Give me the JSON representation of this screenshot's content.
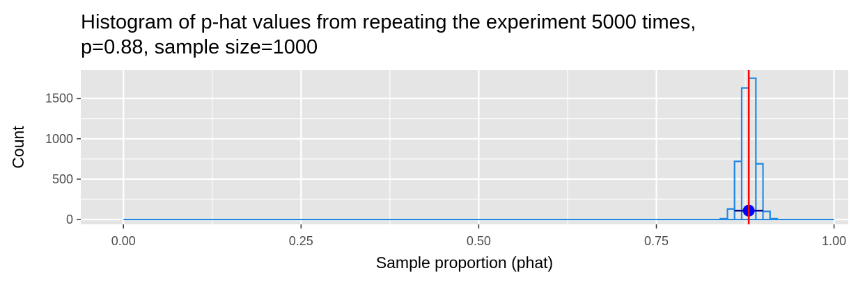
{
  "chart_data": {
    "type": "bar",
    "title_lines": [
      "Histogram of p-hat values from repeating the experiment 5000 times,",
      "p=0.88, sample size=1000"
    ],
    "xlabel": "Sample proportion (phat)",
    "ylabel": "Count",
    "xlim": [
      -0.06,
      1.02
    ],
    "ylim": [
      -60,
      1850
    ],
    "x_ticks": [
      "0.00",
      "0.25",
      "0.50",
      "0.75",
      "1.00"
    ],
    "x_tick_values": [
      0,
      0.25,
      0.5,
      0.75,
      1.0
    ],
    "y_ticks": [
      "0",
      "500",
      "1000",
      "1500"
    ],
    "y_tick_values": [
      0,
      500,
      1000,
      1500
    ],
    "bin_width": 0.01,
    "bins_x_range": [
      0,
      1
    ],
    "bins": [
      {
        "x": 0.84,
        "count": 10
      },
      {
        "x": 0.85,
        "count": 130
      },
      {
        "x": 0.86,
        "count": 720
      },
      {
        "x": 0.87,
        "count": 1630
      },
      {
        "x": 0.88,
        "count": 1750
      },
      {
        "x": 0.89,
        "count": 690
      },
      {
        "x": 0.9,
        "count": 100
      },
      {
        "x": 0.91,
        "count": 10
      }
    ],
    "reference_line": {
      "x": 0.88,
      "color": "#ff0000"
    },
    "mean_point": {
      "x": 0.88,
      "y": 110,
      "color": "#0000ff"
    },
    "interval": {
      "x_low": 0.86,
      "x_high": 0.9,
      "y": 110
    },
    "colors": {
      "panel": "#e5e5e5",
      "grid_major": "#ffffff",
      "bar_outline": "#1e88e5"
    },
    "grid": true
  }
}
